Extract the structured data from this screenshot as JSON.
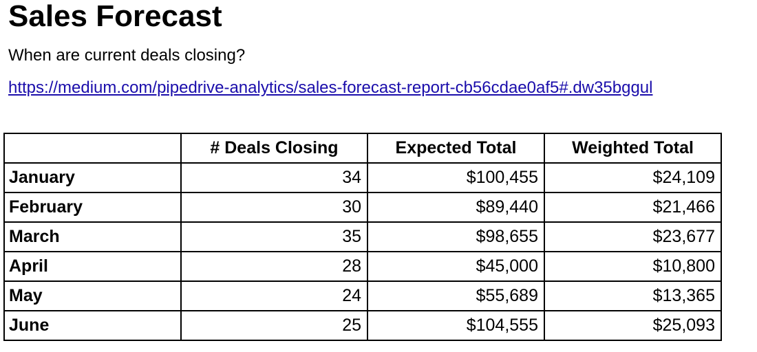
{
  "header": {
    "title": "Sales Forecast",
    "subtitle": "When are current deals closing?",
    "link_text": "https://medium.com/pipedrive-analytics/sales-forecast-report-cb56cdae0af5#.dw35bggul"
  },
  "table": {
    "columns": [
      "",
      "# Deals Closing",
      "Expected Total",
      "Weighted Total"
    ],
    "rows": [
      {
        "month": "January",
        "deals": "34",
        "expected": "$100,455",
        "weighted": "$24,109"
      },
      {
        "month": "February",
        "deals": "30",
        "expected": "$89,440",
        "weighted": "$21,466"
      },
      {
        "month": "March",
        "deals": "35",
        "expected": "$98,655",
        "weighted": "$23,677"
      },
      {
        "month": "April",
        "deals": "28",
        "expected": "$45,000",
        "weighted": "$10,800"
      },
      {
        "month": "May",
        "deals": "24",
        "expected": "$55,689",
        "weighted": "$13,365"
      },
      {
        "month": "June",
        "deals": "25",
        "expected": "$104,555",
        "weighted": "$25,093"
      }
    ]
  },
  "colors": {
    "link": "#1a0dab",
    "border": "#000000"
  }
}
